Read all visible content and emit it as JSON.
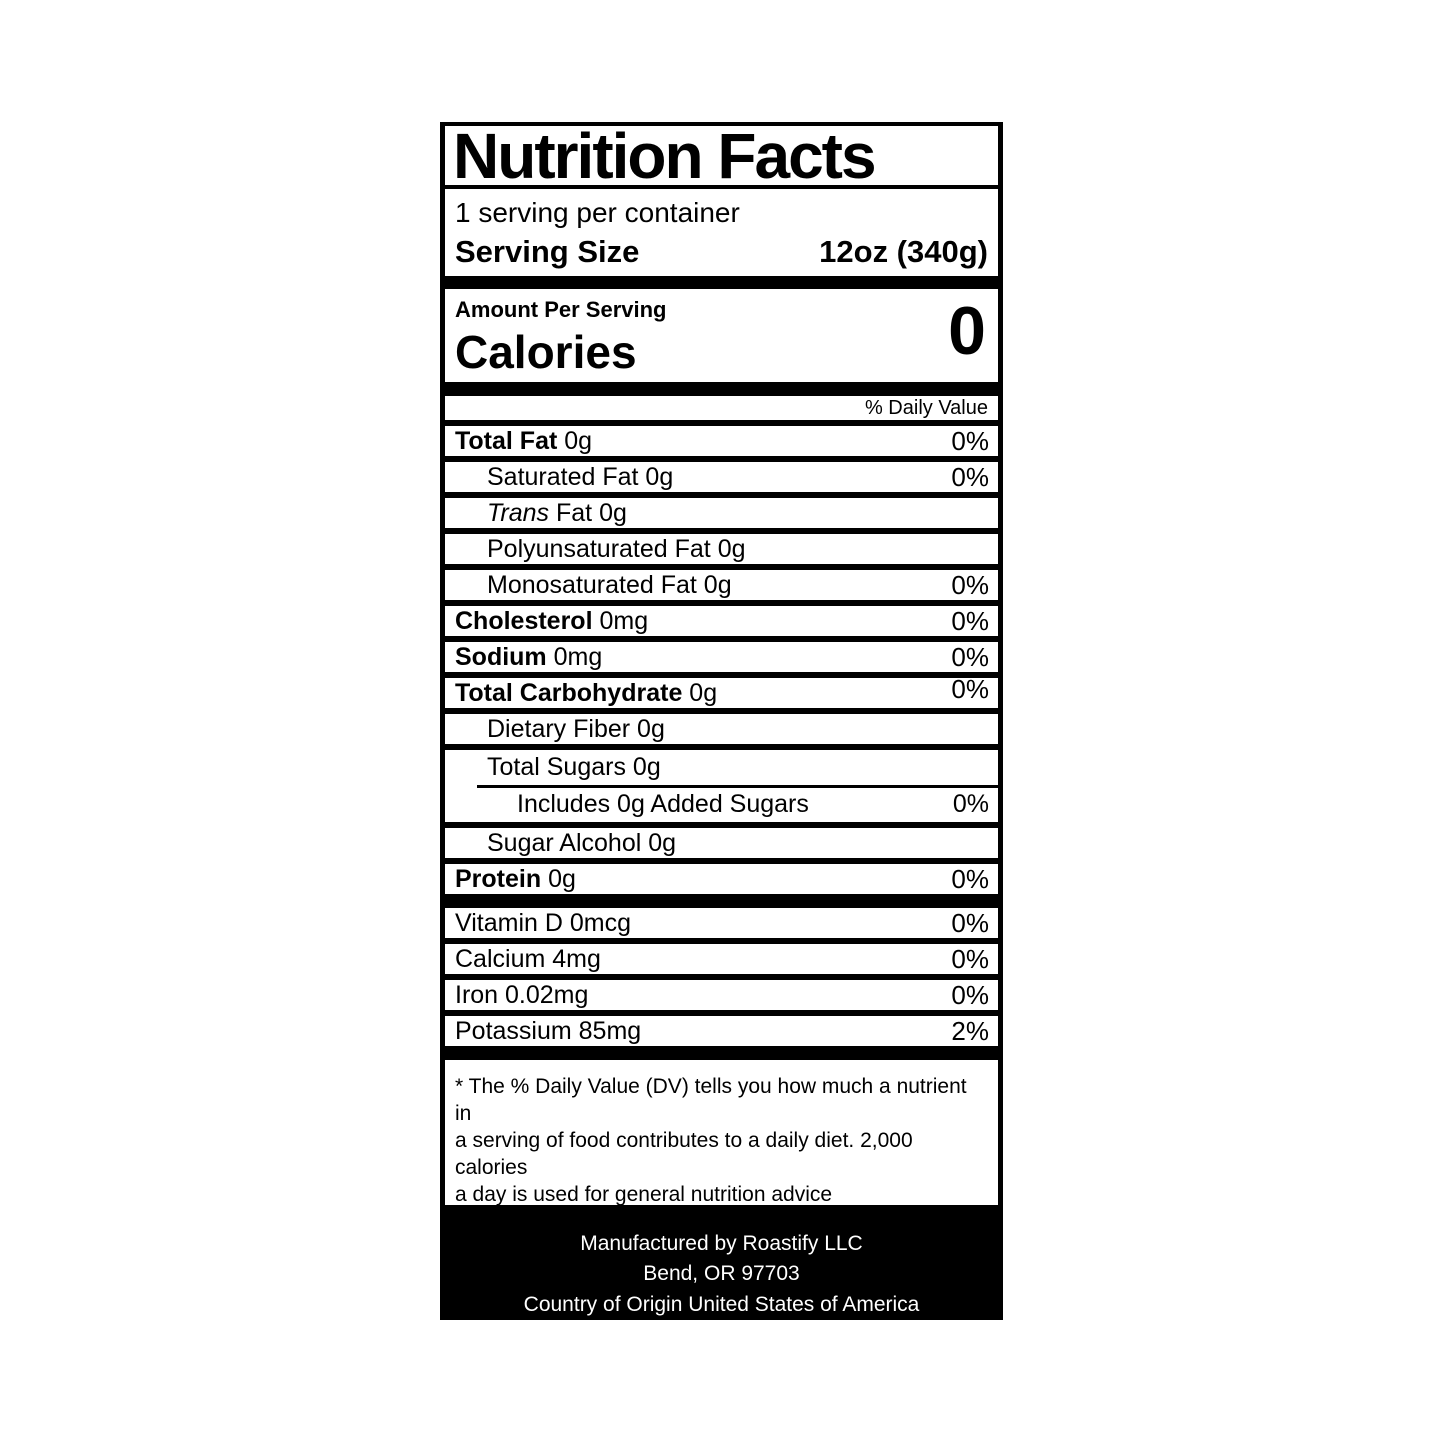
{
  "colors": {
    "label_bg": "#000000",
    "label_fg": "#ffffff",
    "text": "#000000"
  },
  "label": {
    "title": "Nutrition Facts",
    "servings_per_container": "1 serving per container",
    "serving_size_label": "Serving Size",
    "serving_size_value": "12oz (340g)",
    "amount_per_serving": "Amount Per Serving",
    "calories_label": "Calories",
    "calories_value": "0",
    "daily_value_header": "% Daily Value",
    "nutrients": [
      {
        "name": "Total Fat",
        "amount": "0g",
        "dv": "0%",
        "style": "bold",
        "indent": 0
      },
      {
        "name": "Saturated Fat",
        "amount": "0g",
        "dv": "0%",
        "style": "plain",
        "indent": 1
      },
      {
        "name": "Trans Fat",
        "amount": "0g",
        "dv": null,
        "style": "italic-prefix",
        "indent": 1
      },
      {
        "name": "Polyunsaturated Fat",
        "amount": "0g",
        "dv": null,
        "style": "plain",
        "indent": 1
      },
      {
        "name": "Monosaturated Fat",
        "amount": "0g",
        "dv": "0%",
        "style": "plain",
        "indent": 1
      },
      {
        "name": "Cholesterol",
        "amount": "0mg",
        "dv": "0%",
        "style": "bold",
        "indent": 0
      },
      {
        "name": "Sodium",
        "amount": "0mg",
        "dv": "0%",
        "style": "bold",
        "indent": 0
      },
      {
        "name": "Total Carbohydrate",
        "amount": "0g",
        "dv": "0%",
        "style": "bold",
        "indent": 0,
        "dv_raised": true
      },
      {
        "name": "Dietary Fiber",
        "amount": "0g",
        "dv": null,
        "style": "plain",
        "indent": 1
      },
      {
        "type": "group",
        "top": {
          "name": "Total Sugars",
          "amount": "0g",
          "dv": null,
          "style": "plain",
          "indent": 1
        },
        "bottom": {
          "name": "Includes 0g Added Sugars",
          "amount": "",
          "dv": "0%",
          "style": "plain",
          "indent": 2
        }
      },
      {
        "name": "Sugar Alcohol",
        "amount": "0g",
        "dv": null,
        "style": "plain",
        "indent": 1
      },
      {
        "name": "Protein",
        "amount": "0g",
        "dv": "0%",
        "style": "bold",
        "indent": 0,
        "section_end": true
      },
      {
        "name": "Vitamin D",
        "amount": "0mcg",
        "dv": "0%",
        "style": "plain",
        "indent": 0
      },
      {
        "name": "Calcium",
        "amount": "4mg",
        "dv": "0%",
        "style": "plain",
        "indent": 0
      },
      {
        "name": "Iron",
        "amount": "0.02mg",
        "dv": "0%",
        "style": "plain",
        "indent": 0
      },
      {
        "name": "Potassium",
        "amount": "85mg",
        "dv": "2%",
        "style": "plain",
        "indent": 0,
        "section_end": true
      }
    ],
    "footnote": "* The % Daily Value (DV) tells you how much a nutrient in\na serving of food contributes to a daily diet. 2,000 calories\na day is used for general nutrition advice",
    "footer": "Manufactured by Roastify LLC\nBend, OR 97703\nCountry of Origin United States of America"
  }
}
